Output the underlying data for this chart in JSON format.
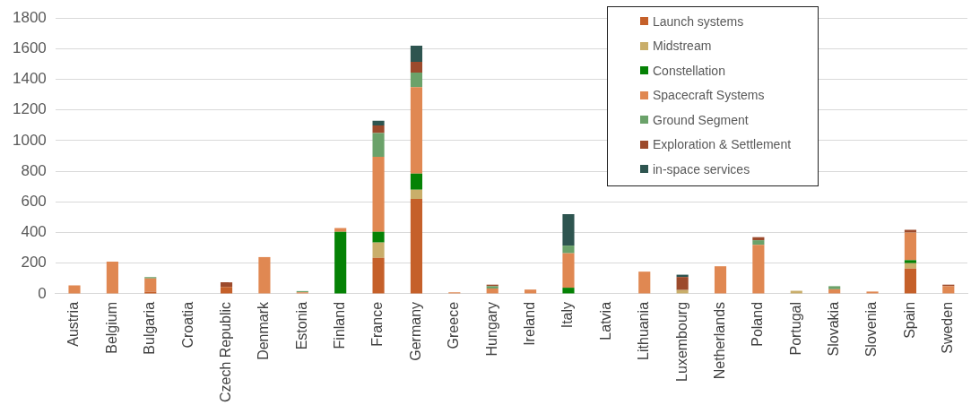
{
  "chart_data": {
    "type": "bar",
    "stacked": true,
    "legend": "top right",
    "grid": "y",
    "categories": [
      "Austria",
      "Belgium",
      "Bulgaria",
      "Croatia",
      "Czech Republic",
      "Denmark",
      "Estonia",
      "Finland",
      "France",
      "Germany",
      "Greece",
      "Hungary",
      "Ireland",
      "Italy",
      "Latvia",
      "Lithuania",
      "Luxembourg",
      "Netherlands",
      "Poland",
      "Portugal",
      "Slovakia",
      "Slovenia",
      "Spain",
      "Sweden"
    ],
    "ylim": [
      0,
      1800
    ],
    "yticks": [
      0,
      200,
      400,
      600,
      800,
      1000,
      1200,
      1400,
      1600,
      1800
    ],
    "series": [
      {
        "name": "Launch systems",
        "color": "#c5602a",
        "values": [
          0,
          0,
          15,
          0,
          45,
          0,
          0,
          0,
          235,
          620,
          0,
          0,
          0,
          0,
          0,
          0,
          0,
          0,
          0,
          0,
          0,
          0,
          165,
          0
        ]
      },
      {
        "name": "Midstream",
        "color": "#c9ae6a",
        "values": [
          0,
          0,
          0,
          0,
          0,
          0,
          0,
          0,
          100,
          60,
          0,
          0,
          0,
          0,
          0,
          0,
          25,
          0,
          0,
          20,
          0,
          0,
          35,
          0
        ]
      },
      {
        "name": "Constellation",
        "color": "#058205",
        "values": [
          0,
          0,
          0,
          0,
          0,
          0,
          0,
          405,
          70,
          105,
          0,
          0,
          0,
          40,
          0,
          0,
          0,
          0,
          0,
          0,
          0,
          0,
          20,
          0
        ]
      },
      {
        "name": "Spacecraft Systems",
        "color": "#e08852",
        "values": [
          55,
          210,
          85,
          0,
          0,
          240,
          10,
          25,
          490,
          565,
          10,
          35,
          28,
          225,
          0,
          145,
          0,
          180,
          320,
          0,
          30,
          15,
          180,
          50
        ]
      },
      {
        "name": "Ground Segment",
        "color": "#6ba26a",
        "values": [
          0,
          0,
          10,
          0,
          0,
          0,
          8,
          0,
          155,
          95,
          0,
          15,
          0,
          50,
          0,
          0,
          0,
          0,
          30,
          0,
          20,
          0,
          0,
          0
        ]
      },
      {
        "name": "Exploration & Settlement",
        "color": "#9c4a2c",
        "values": [
          0,
          0,
          0,
          0,
          30,
          0,
          0,
          0,
          50,
          70,
          0,
          10,
          0,
          0,
          0,
          0,
          85,
          0,
          20,
          0,
          0,
          0,
          18,
          10
        ]
      },
      {
        "name": "in-space services",
        "color": "#2e5550",
        "values": [
          0,
          0,
          0,
          0,
          0,
          0,
          0,
          0,
          30,
          105,
          0,
          0,
          0,
          205,
          0,
          0,
          15,
          0,
          0,
          0,
          0,
          0,
          0,
          0
        ]
      }
    ]
  }
}
